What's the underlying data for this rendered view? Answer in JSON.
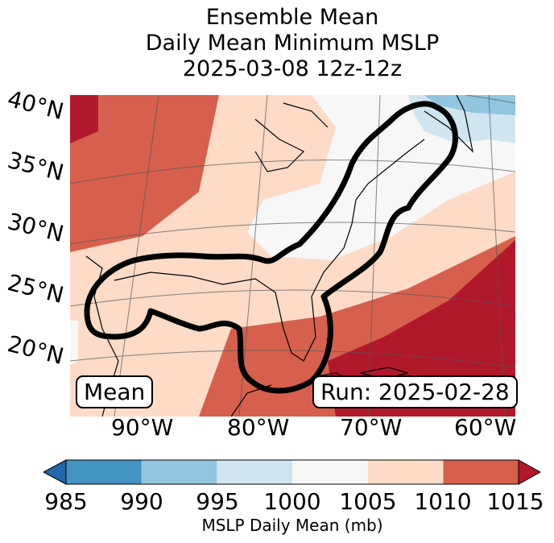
{
  "title": {
    "line1": "Ensemble Mean",
    "line2": "Daily Mean Minimum MSLP",
    "line3": "2025-03-08 12z-12z"
  },
  "map": {
    "lat_labels": [
      "40°N",
      "35°N",
      "30°N",
      "25°N",
      "20°N"
    ],
    "lon_labels": [
      "90°W",
      "80°W",
      "70°W",
      "60°W"
    ],
    "left_box": "Mean",
    "right_box": "Run: 2025-02-28",
    "outline_color": "#000000"
  },
  "colorbar": {
    "ticks": [
      "985",
      "990",
      "995",
      "1000",
      "1005",
      "1010",
      "1015"
    ],
    "label": "MSLP Daily Mean (mb)",
    "bins": [
      {
        "range": "<985",
        "color": "#2166ac"
      },
      {
        "range": "985-990",
        "color": "#4393c3"
      },
      {
        "range": "990-995",
        "color": "#92c5de"
      },
      {
        "range": "995-1000",
        "color": "#d1e5f0"
      },
      {
        "range": "1000-1005",
        "color": "#f7f7f7"
      },
      {
        "range": "1005-1010",
        "color": "#fddbc7"
      },
      {
        "range": "1010-1015",
        "color": "#d6604d"
      },
      {
        "range": ">1015",
        "color": "#b2182b"
      }
    ]
  }
}
